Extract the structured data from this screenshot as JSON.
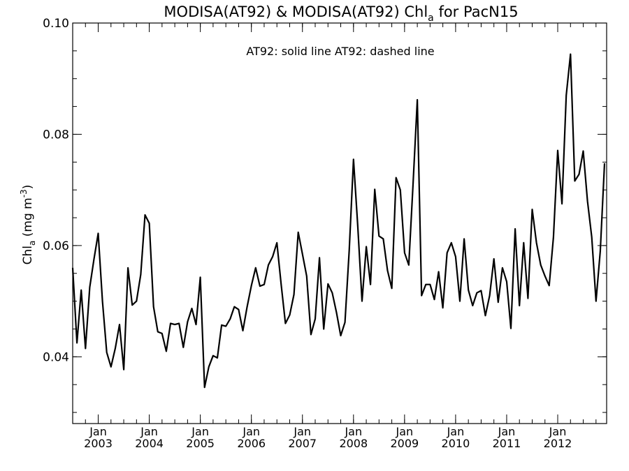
{
  "chart_data": {
    "type": "line",
    "title": {
      "pre": "MODISA(AT92) & MODISA(AT92)  Chl",
      "sub": "a",
      "post": " for PacN15"
    },
    "annotation": "AT92: solid line   AT92: dashed line",
    "ylabel": {
      "pre": "Chl",
      "sub": "a",
      "mid": " (mg m",
      "sup": "-3",
      "post": ")"
    },
    "ylim": [
      0.028,
      0.1
    ],
    "y_ticks": [
      {
        "value": 0.04,
        "label": "0.04"
      },
      {
        "value": 0.06,
        "label": "0.06"
      },
      {
        "value": 0.08,
        "label": "0.08"
      },
      {
        "value": 0.1,
        "label": "0.10"
      }
    ],
    "y_minor_step": 0.005,
    "xlim": [
      2002.5,
      2012.958
    ],
    "x_month_label": "Jan",
    "x_ticks": [
      {
        "value": 2003,
        "label": "2003"
      },
      {
        "value": 2004,
        "label": "2004"
      },
      {
        "value": 2005,
        "label": "2005"
      },
      {
        "value": 2006,
        "label": "2006"
      },
      {
        "value": 2007,
        "label": "2007"
      },
      {
        "value": 2008,
        "label": "2008"
      },
      {
        "value": 2009,
        "label": "2009"
      },
      {
        "value": 2010,
        "label": "2010"
      },
      {
        "value": 2011,
        "label": "2011"
      },
      {
        "value": 2012,
        "label": "2012"
      }
    ],
    "series": [
      {
        "style": "solid",
        "color": "#000000",
        "start": "2002-07",
        "values": [
          0.056,
          0.0425,
          0.052,
          0.0415,
          0.0525,
          0.0575,
          0.0622,
          0.05,
          0.0408,
          0.0382,
          0.0415,
          0.0458,
          0.0377,
          0.056,
          0.0493,
          0.05,
          0.0548,
          0.0655,
          0.064,
          0.049,
          0.0445,
          0.0442,
          0.041,
          0.046,
          0.0458,
          0.046,
          0.0417,
          0.0463,
          0.0487,
          0.0458,
          0.0543,
          0.0345,
          0.0382,
          0.0402,
          0.0398,
          0.0457,
          0.0455,
          0.0468,
          0.049,
          0.0485,
          0.0447,
          0.049,
          0.0528,
          0.056,
          0.0527,
          0.053,
          0.0565,
          0.058,
          0.0605,
          0.053,
          0.046,
          0.0475,
          0.0512,
          0.0624,
          0.0585,
          0.0545,
          0.044,
          0.0468,
          0.0578,
          0.045,
          0.0531,
          0.0515,
          0.048,
          0.0438,
          0.0462,
          0.0592,
          0.0755,
          0.0635,
          0.05,
          0.0598,
          0.053,
          0.0701,
          0.0617,
          0.0612,
          0.0555,
          0.0523,
          0.0722,
          0.07,
          0.0587,
          0.0565,
          0.071,
          0.0862,
          0.051,
          0.053,
          0.053,
          0.0503,
          0.0553,
          0.0488,
          0.0587,
          0.0605,
          0.058,
          0.05,
          0.0612,
          0.052,
          0.0492,
          0.0515,
          0.0519,
          0.0474,
          0.051,
          0.0576,
          0.0498,
          0.056,
          0.0535,
          0.0451,
          0.063,
          0.0492,
          0.0605,
          0.0505,
          0.0665,
          0.0605,
          0.0565,
          0.0545,
          0.0528,
          0.0615,
          0.0771,
          0.0675,
          0.087,
          0.0944,
          0.0716,
          0.0728,
          0.077,
          0.068,
          0.0615,
          0.05,
          0.059,
          0.0748
        ]
      }
    ]
  }
}
